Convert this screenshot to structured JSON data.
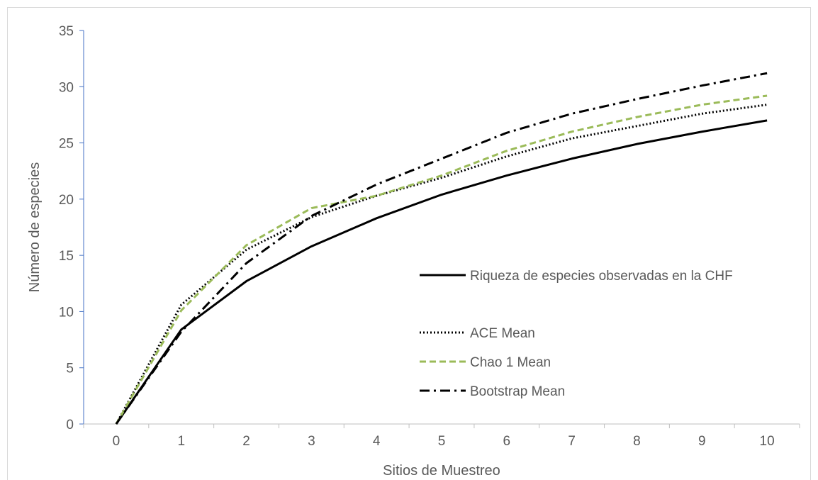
{
  "chart_data": {
    "type": "line",
    "title": "",
    "xlabel": "Sitios de Muestreo",
    "ylabel": "Número de especies",
    "x": [
      0,
      1,
      2,
      3,
      4,
      5,
      6,
      7,
      8,
      9,
      10
    ],
    "xlim": [
      -0.5,
      10.5
    ],
    "ylim": [
      0,
      35
    ],
    "yticks": [
      0,
      5,
      10,
      15,
      20,
      25,
      30,
      35
    ],
    "grid": false,
    "legend_position": "right",
    "series": [
      {
        "name": "Riqueza de especies observadas en la CHF",
        "values": [
          0,
          8.4,
          12.7,
          15.8,
          18.3,
          20.4,
          22.1,
          23.6,
          24.9,
          26.0,
          27.0
        ],
        "color": "#000000",
        "style": "solid"
      },
      {
        "name": "ACE Mean",
        "values": [
          0,
          10.6,
          15.5,
          18.4,
          20.3,
          21.9,
          23.8,
          25.4,
          26.5,
          27.6,
          28.4
        ],
        "color": "#000000",
        "style": "dotted"
      },
      {
        "name": "Chao 1 Mean",
        "values": [
          0,
          10.1,
          15.9,
          19.2,
          20.3,
          22.1,
          24.3,
          26.0,
          27.3,
          28.4,
          29.2
        ],
        "color": "#9bbb59",
        "style": "dashed"
      },
      {
        "name": "Bootstrap Mean",
        "values": [
          0,
          8.2,
          14.3,
          18.5,
          21.3,
          23.6,
          25.9,
          27.6,
          28.9,
          30.1,
          31.2
        ],
        "color": "#000000",
        "style": "dashdot"
      }
    ]
  }
}
